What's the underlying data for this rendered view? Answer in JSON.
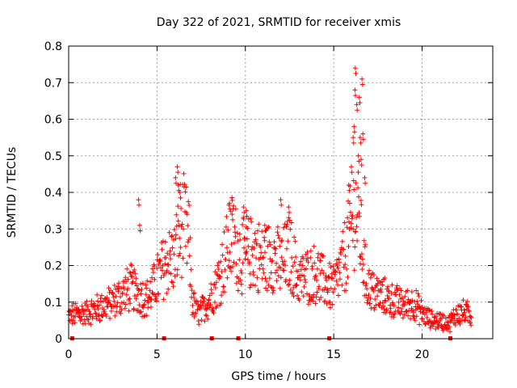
{
  "colors": {
    "series": "#ff0000",
    "grid": "#a0a0a0",
    "axis": "#000000",
    "background": "#ffffff"
  },
  "chart_data": {
    "type": "scatter",
    "marker": "plus",
    "title": "Day 322 of 2021, SRMTID for receiver xmis",
    "xlabel": "GPS time / hours",
    "ylabel": "SRMTID / TECUs",
    "xlim": [
      0,
      24
    ],
    "ylim": [
      0,
      0.8
    ],
    "grid": true,
    "legend": "none",
    "x_ticks": [
      0,
      5,
      10,
      15,
      20
    ],
    "x_tick_labels": [
      "0",
      "5",
      "10",
      "15",
      "20"
    ],
    "y_ticks": [
      0,
      0.1,
      0.2,
      0.3,
      0.4,
      0.5,
      0.6,
      0.7,
      0.8
    ],
    "y_tick_labels": [
      "0",
      "0.1",
      "0.2",
      "0.3",
      "0.4",
      "0.5",
      "0.6",
      "0.7",
      "0.8"
    ],
    "profile": {
      "x": [
        0,
        0.5,
        1.0,
        1.5,
        2.0,
        2.5,
        3.0,
        3.5,
        4.0,
        4.5,
        5.0,
        5.5,
        6.0,
        6.3,
        6.5,
        6.8,
        7.0,
        7.3,
        7.6,
        8.0,
        8.3,
        8.6,
        9.0,
        9.3,
        9.6,
        10.0,
        10.5,
        11.0,
        11.5,
        12.0,
        12.5,
        13.0,
        13.5,
        14.0,
        14.5,
        15.0,
        15.5,
        15.8,
        16.0,
        16.2,
        16.4,
        16.6,
        16.8,
        17.0,
        17.5,
        18.0,
        18.5,
        19.0,
        19.5,
        20.0,
        20.5,
        21.0,
        21.5,
        22.0,
        22.5,
        22.8
      ],
      "y": [
        0.06,
        0.07,
        0.07,
        0.08,
        0.09,
        0.1,
        0.12,
        0.14,
        0.12,
        0.11,
        0.16,
        0.21,
        0.22,
        0.3,
        0.31,
        0.27,
        0.1,
        0.07,
        0.08,
        0.11,
        0.14,
        0.18,
        0.25,
        0.28,
        0.24,
        0.22,
        0.24,
        0.21,
        0.23,
        0.2,
        0.24,
        0.16,
        0.17,
        0.18,
        0.15,
        0.14,
        0.2,
        0.26,
        0.3,
        0.36,
        0.32,
        0.25,
        0.17,
        0.14,
        0.12,
        0.11,
        0.1,
        0.09,
        0.1,
        0.07,
        0.05,
        0.05,
        0.04,
        0.07,
        0.07,
        0.06
      ]
    },
    "spikes": [
      {
        "x": 3.95,
        "y": 0.38
      },
      {
        "x": 4.02,
        "y": 0.31
      },
      {
        "x": 6.05,
        "y": 0.44
      },
      {
        "x": 6.15,
        "y": 0.47
      },
      {
        "x": 6.2,
        "y": 0.42
      },
      {
        "x": 6.3,
        "y": 0.4
      },
      {
        "x": 9.1,
        "y": 0.37
      },
      {
        "x": 9.25,
        "y": 0.34
      },
      {
        "x": 9.9,
        "y": 0.36
      },
      {
        "x": 10.05,
        "y": 0.35
      },
      {
        "x": 11.1,
        "y": 0.31
      },
      {
        "x": 12.0,
        "y": 0.38
      },
      {
        "x": 12.45,
        "y": 0.36
      },
      {
        "x": 15.85,
        "y": 0.42
      },
      {
        "x": 16.0,
        "y": 0.47
      },
      {
        "x": 16.1,
        "y": 0.55
      },
      {
        "x": 16.15,
        "y": 0.58
      },
      {
        "x": 16.2,
        "y": 0.68
      },
      {
        "x": 16.22,
        "y": 0.74
      },
      {
        "x": 16.3,
        "y": 0.64
      },
      {
        "x": 16.4,
        "y": 0.5
      },
      {
        "x": 16.45,
        "y": 0.66
      },
      {
        "x": 16.5,
        "y": 0.55
      },
      {
        "x": 16.55,
        "y": 0.49
      },
      {
        "x": 16.6,
        "y": 0.71
      },
      {
        "x": 16.65,
        "y": 0.56
      },
      {
        "x": 16.75,
        "y": 0.44
      }
    ],
    "zero_markers_x": [
      0.2,
      5.4,
      8.1,
      9.6,
      14.75,
      21.6
    ]
  }
}
